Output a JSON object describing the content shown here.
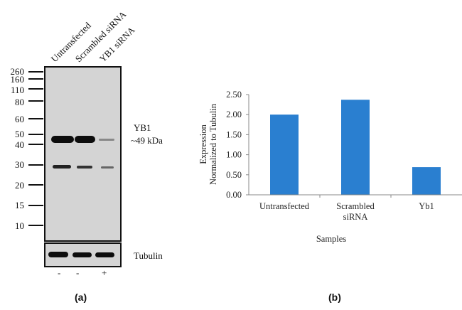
{
  "panel_a": {
    "label": "(a)",
    "lanes": [
      "Untransfected",
      "Scrambled siRNA",
      "YB1 siRNA"
    ],
    "markers": [
      "260",
      "160",
      "110",
      "80",
      "60",
      "50",
      "40",
      "30",
      "20",
      "15",
      "10"
    ],
    "target_name": "YB1",
    "target_size": "~49 kDa",
    "loading_control": "Tubulin",
    "treatment_signs": [
      "-",
      "-",
      "+"
    ]
  },
  "panel_b": {
    "label": "(b)"
  },
  "colors": {
    "bar": "#2a7fd0",
    "axis": "#888888"
  },
  "chart_data": {
    "type": "bar",
    "title": "",
    "categories": [
      "Untransfected",
      "Scrambled siRNA",
      "Yb1"
    ],
    "category_lines": [
      [
        "Untransfected"
      ],
      [
        "Scrambled",
        "siRNA"
      ],
      [
        "Yb1"
      ]
    ],
    "values": [
      2.0,
      2.37,
      0.69
    ],
    "xlabel": "Samples",
    "ylabel_lines": [
      "Expression",
      "Normalized to Tubulin"
    ],
    "ylim": [
      0,
      2.5
    ],
    "yticks": [
      "0.00",
      "0.50",
      "1.00",
      "1.50",
      "2.00",
      "2.50"
    ],
    "grid": false,
    "legend": "none"
  }
}
